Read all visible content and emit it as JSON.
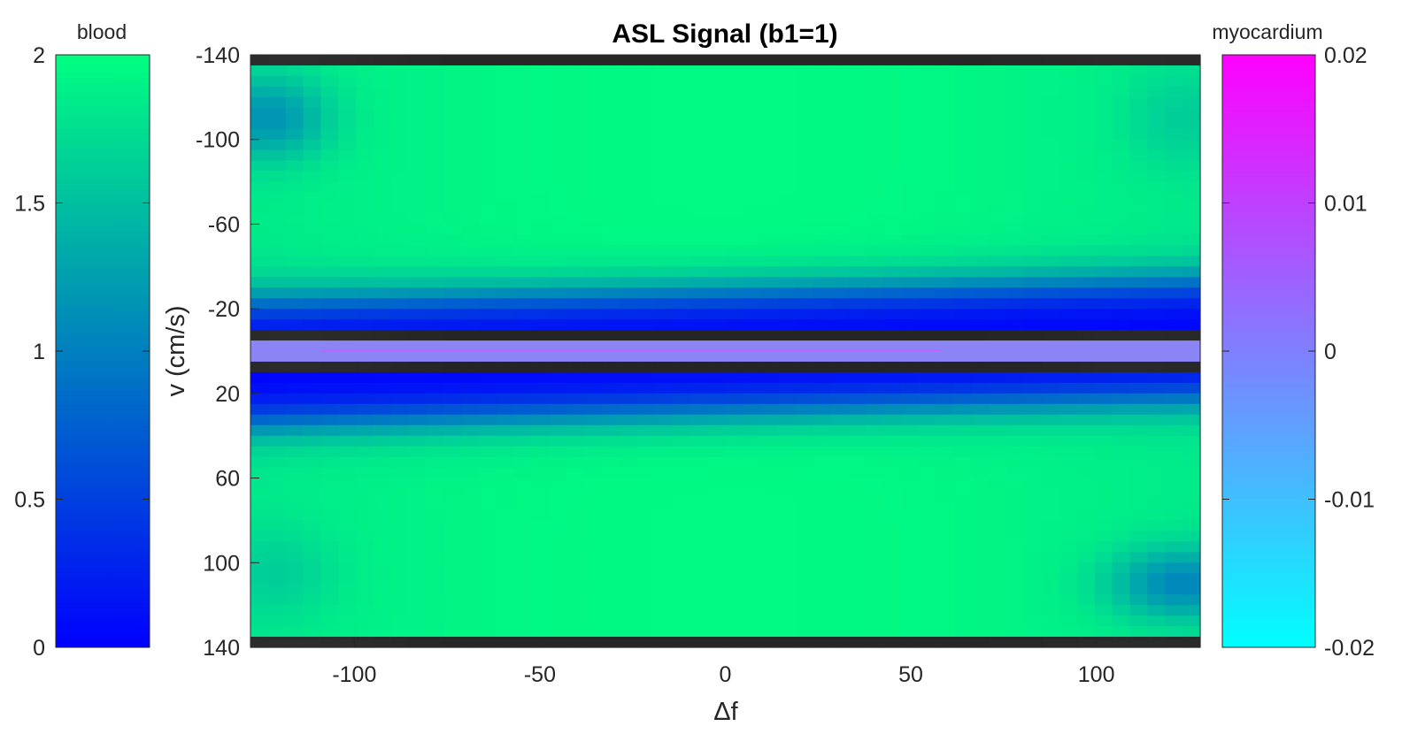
{
  "chart_data": {
    "type": "heatmap",
    "title": "ASL Signal (b1=1)",
    "xlabel": "Δf",
    "ylabel": "v (cm/s)",
    "xlim": [
      -128,
      128
    ],
    "ylim": [
      -140,
      140
    ],
    "y_reversed": true,
    "x_ticks": [
      -100,
      -50,
      0,
      50,
      100
    ],
    "y_ticks": [
      -140,
      -100,
      -60,
      -20,
      20,
      60,
      100,
      140
    ],
    "regions": [
      {
        "name": "blood",
        "v_range": [
          -140,
          -135
        ],
        "value": null,
        "note": "no data"
      },
      {
        "name": "blood",
        "v_range": [
          -135,
          -10
        ],
        "value_peak": 1.95,
        "value_near_zero": 0.02
      },
      {
        "name": "blood",
        "v_range": [
          -10,
          -3
        ],
        "value": null,
        "note": "no data"
      },
      {
        "name": "myocardium",
        "v_range": [
          -3,
          3
        ],
        "value": 0.0
      },
      {
        "name": "blood",
        "v_range": [
          3,
          10
        ],
        "value": null,
        "note": "no data"
      },
      {
        "name": "blood",
        "v_range": [
          10,
          135
        ],
        "value_peak": 1.95,
        "value_near_zero": 0.02
      },
      {
        "name": "blood",
        "v_range": [
          135,
          140
        ],
        "value": null,
        "note": "no data"
      }
    ],
    "colorbars": [
      {
        "label": "blood",
        "position": "left",
        "range": [
          0,
          2
        ],
        "ticks": [
          0,
          0.5,
          1,
          1.5,
          2
        ],
        "colormap": [
          "#0000ff",
          "#00ff80"
        ]
      },
      {
        "label": "myocardium",
        "position": "right",
        "range": [
          -0.02,
          0.02
        ],
        "ticks": [
          -0.02,
          -0.01,
          0,
          0.01,
          0.02
        ],
        "colormap": [
          "#00ffff",
          "#ff00ff"
        ]
      }
    ]
  }
}
